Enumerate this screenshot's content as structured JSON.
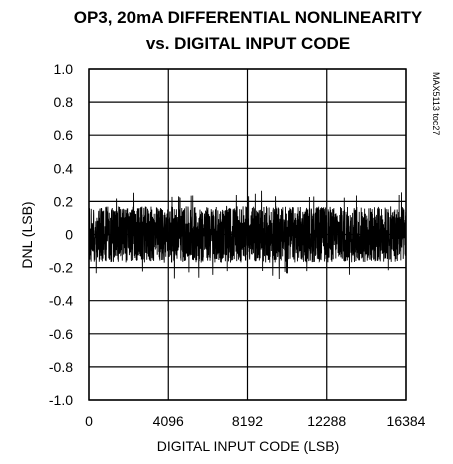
{
  "chart_data": {
    "type": "line",
    "title_line1": "OP3, 20mA DIFFERENTIAL NONLINEARITY",
    "title_line2": "vs. DIGITAL INPUT CODE",
    "xlabel": "DIGITAL INPUT CODE (LSB)",
    "ylabel": "DNL (LSB)",
    "figure_id": "MAX5113 toc27",
    "xlim": [
      0,
      16384
    ],
    "ylim": [
      -1.0,
      1.0
    ],
    "x_ticks": [
      "0",
      "4096",
      "8192",
      "12288",
      "16384"
    ],
    "y_ticks": [
      "1.0",
      "0.8",
      "0.6",
      "0.4",
      "0.2",
      "0",
      "-0.2",
      "-0.4",
      "-0.6",
      "-0.8",
      "-1.0"
    ],
    "grid": true,
    "series": [
      {
        "band_low": -0.17,
        "band_high": 0.17,
        "peak_min": -0.27,
        "peak_max": 0.27,
        "color": "#000000"
      }
    ]
  }
}
